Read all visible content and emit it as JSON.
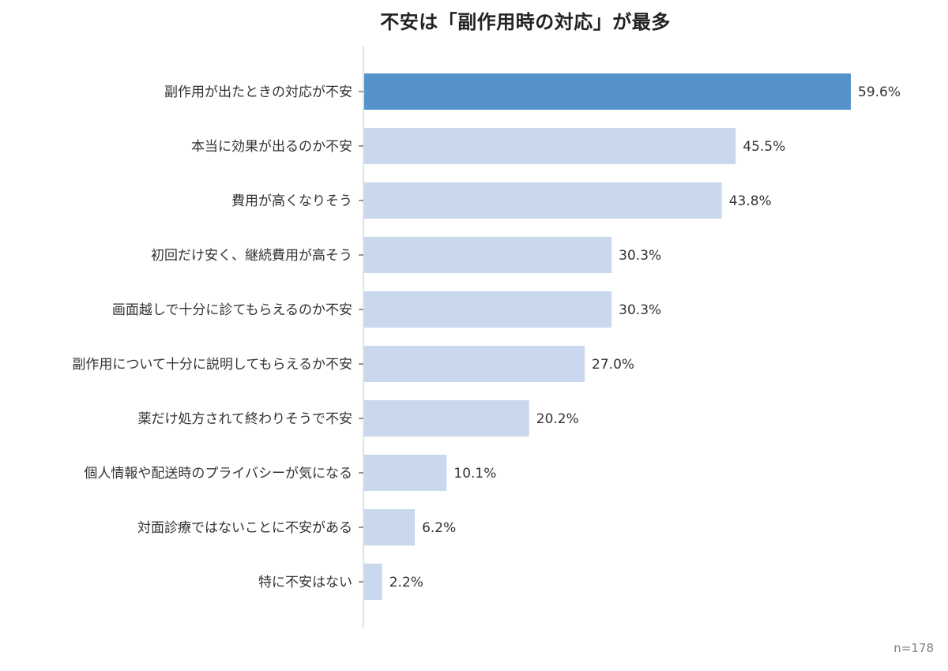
{
  "title": "不安は「副作用時の対応」が最多",
  "sample_note": "n=178",
  "colors": {
    "highlight_bar": "#5592cc",
    "regular_bar": "#c9d8ec",
    "axis_line": "#d5d9df",
    "label_text": "#333333"
  },
  "chart_data": {
    "type": "bar",
    "orientation": "horizontal",
    "title": "不安は「副作用時の対応」が最多",
    "unit": "%",
    "xlim": [
      0,
      65
    ],
    "grid": false,
    "legend": "none",
    "highlight_index": 0,
    "categories": [
      "副作用が出たときの対応が不安",
      "本当に効果が出るのか不安",
      "費用が高くなりそう",
      "初回だけ安く、継続費用が高そう",
      "画面越しで十分に診てもらえるのか不安",
      "副作用について十分に説明してもらえるか不安",
      "薬だけ処方されて終わりそうで不安",
      "個人情報や配送時のプライバシーが気になる",
      "対面診療ではないことに不安がある",
      "特に不安はない"
    ],
    "values": [
      59.6,
      45.5,
      43.8,
      30.3,
      30.3,
      27.0,
      20.2,
      10.1,
      6.2,
      2.2
    ],
    "value_labels": [
      "59.6%",
      "45.5%",
      "43.8%",
      "30.3%",
      "30.3%",
      "27.0%",
      "20.2%",
      "10.1%",
      "6.2%",
      "2.2%"
    ]
  }
}
